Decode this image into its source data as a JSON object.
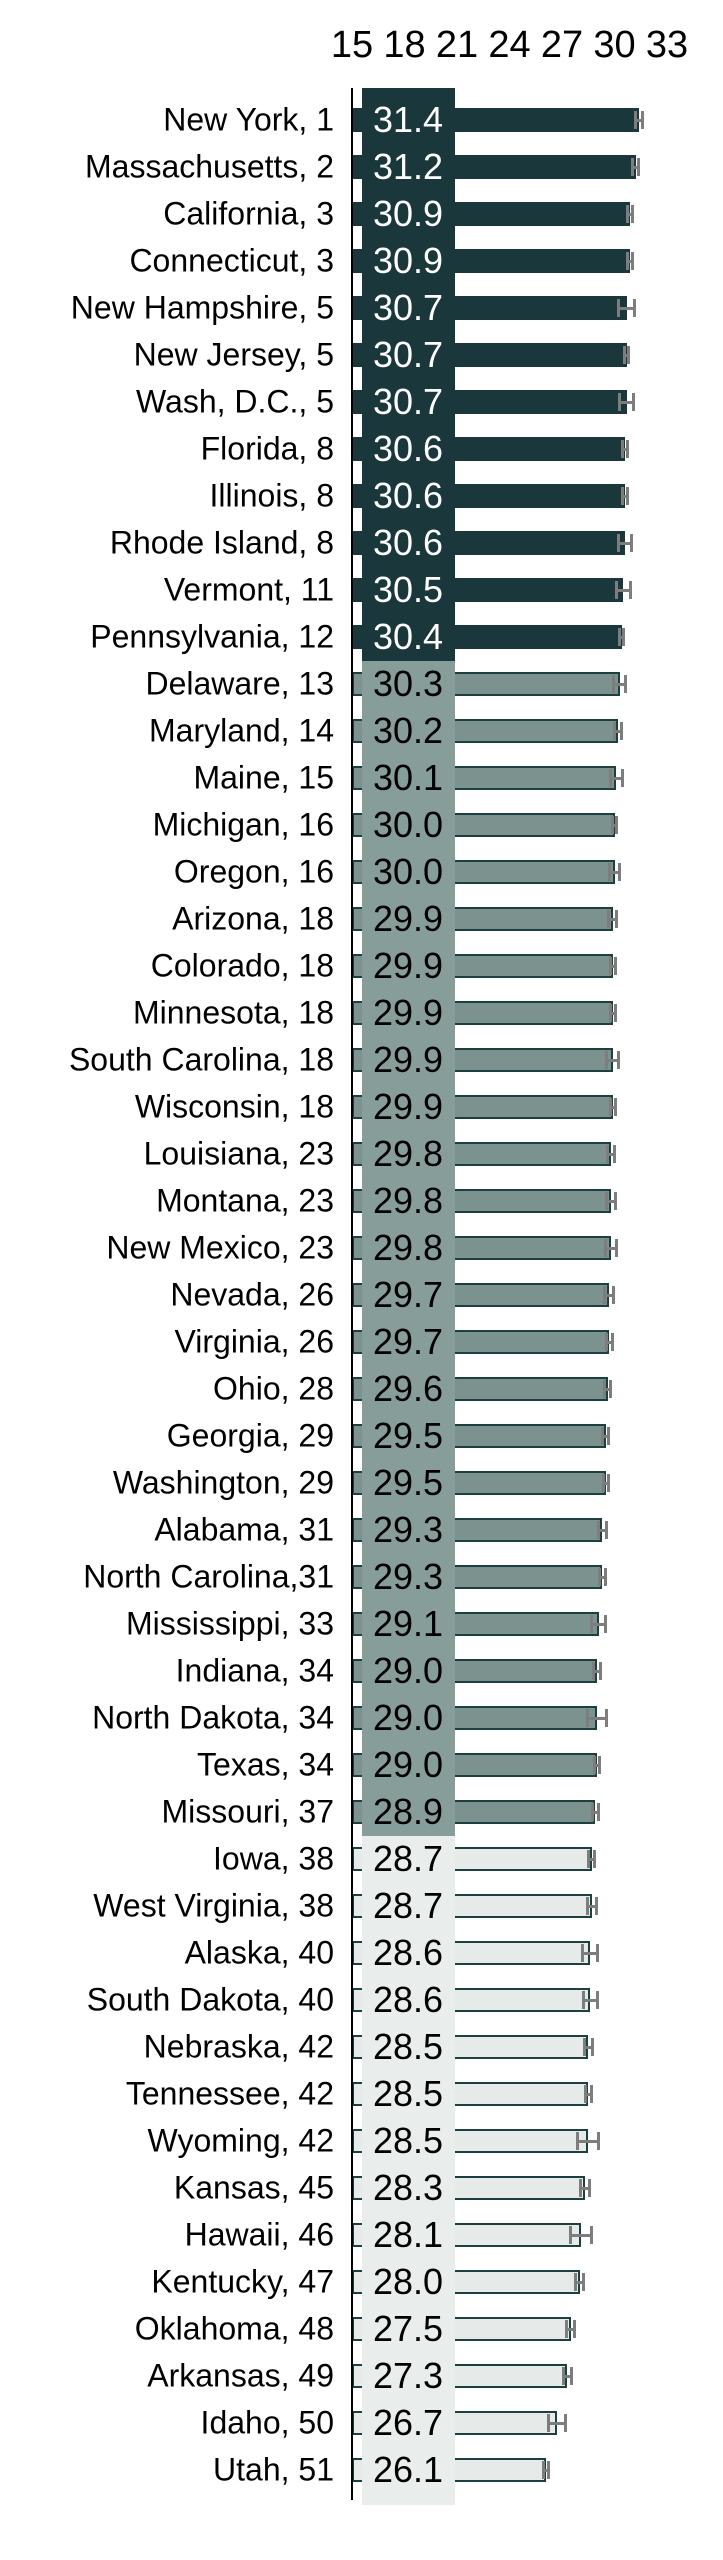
{
  "chart_data": {
    "type": "bar",
    "orientation": "horizontal",
    "title": "",
    "xlabel": "",
    "ylabel": "",
    "x_axis": {
      "min": 15,
      "max": 33,
      "ticks": [
        15,
        18,
        21,
        24,
        27,
        30,
        33
      ],
      "tick_labels": [
        "15",
        "18",
        "21",
        "24",
        "27",
        "30",
        "33"
      ]
    },
    "grid": false,
    "legend": false,
    "value_band": {
      "description": "shaded column behind value labels, colored per tier",
      "tiers": 3
    },
    "colors": {
      "tier1_fill": "#1a373c",
      "tier1_border": "#1a373c",
      "tier1_band": "#1a373c",
      "tier1_value_text": "#ffffff",
      "tier2_fill": "#7b928e",
      "tier2_border": "#1c3f40",
      "tier2_band": "#879d99",
      "tier2_value_text": "#000000",
      "tier3_fill": "#e6ebe9",
      "tier3_border": "#1c3f40",
      "tier3_band": "#e9eeec",
      "tier3_value_text": "#000000",
      "whisker": "#7d7d7d",
      "axis_line": "#000000",
      "label_text": "#000000"
    },
    "rows": [
      {
        "label": "New York, 1",
        "state": "New York",
        "rank": 1,
        "value": 31.4,
        "value_label": "31.4",
        "error": 0.18,
        "tier": 1
      },
      {
        "label": "Massachusetts, 2",
        "state": "Massachusetts",
        "rank": 2,
        "value": 31.2,
        "value_label": "31.2",
        "error": 0.15,
        "tier": 1
      },
      {
        "label": "California, 3",
        "state": "California",
        "rank": 3,
        "value": 30.9,
        "value_label": "30.9",
        "error": 0.15,
        "tier": 1
      },
      {
        "label": "Connecticut, 3",
        "state": "Connecticut",
        "rank": 3,
        "value": 30.9,
        "value_label": "30.9",
        "error": 0.15,
        "tier": 1
      },
      {
        "label": "New Hampshire, 5",
        "state": "New Hampshire",
        "rank": 5,
        "value": 30.7,
        "value_label": "30.7",
        "error": 0.45,
        "tier": 1
      },
      {
        "label": "New Jersey, 5",
        "state": "New Jersey",
        "rank": 5,
        "value": 30.7,
        "value_label": "30.7",
        "error": 0.12,
        "tier": 1
      },
      {
        "label": "Wash, D.C., 5",
        "state": "Wash, D.C.",
        "rank": 5,
        "value": 30.7,
        "value_label": "30.7",
        "error": 0.4,
        "tier": 1
      },
      {
        "label": "Florida, 8",
        "state": "Florida",
        "rank": 8,
        "value": 30.6,
        "value_label": "30.6",
        "error": 0.15,
        "tier": 1
      },
      {
        "label": "Illinois, 8",
        "state": "Illinois",
        "rank": 8,
        "value": 30.6,
        "value_label": "30.6",
        "error": 0.12,
        "tier": 1
      },
      {
        "label": "Rhode Island, 8",
        "state": "Rhode Island",
        "rank": 8,
        "value": 30.6,
        "value_label": "30.6",
        "error": 0.35,
        "tier": 1
      },
      {
        "label": "Vermont, 11",
        "state": "Vermont",
        "rank": 11,
        "value": 30.5,
        "value_label": "30.5",
        "error": 0.4,
        "tier": 1
      },
      {
        "label": "Pennsylvania, 12",
        "state": "Pennsylvania",
        "rank": 12,
        "value": 30.4,
        "value_label": "30.4",
        "error": 0.12,
        "tier": 1
      },
      {
        "label": "Delaware, 13",
        "state": "Delaware",
        "rank": 13,
        "value": 30.3,
        "value_label": "30.3",
        "error": 0.35,
        "tier": 2
      },
      {
        "label": "Maryland, 14",
        "state": "Maryland",
        "rank": 14,
        "value": 30.2,
        "value_label": "30.2",
        "error": 0.22,
        "tier": 2
      },
      {
        "label": "Maine, 15",
        "state": "Maine",
        "rank": 15,
        "value": 30.1,
        "value_label": "30.1",
        "error": 0.35,
        "tier": 2
      },
      {
        "label": "Michigan, 16",
        "state": "Michigan",
        "rank": 16,
        "value": 30.0,
        "value_label": "30.0",
        "error": 0.12,
        "tier": 2
      },
      {
        "label": "Oregon, 16",
        "state": "Oregon",
        "rank": 16,
        "value": 30.0,
        "value_label": "30.0",
        "error": 0.28,
        "tier": 2
      },
      {
        "label": "Arizona, 18",
        "state": "Arizona",
        "rank": 18,
        "value": 29.9,
        "value_label": "29.9",
        "error": 0.22,
        "tier": 2
      },
      {
        "label": "Colorado, 18",
        "state": "Colorado",
        "rank": 18,
        "value": 29.9,
        "value_label": "29.9",
        "error": 0.15,
        "tier": 2
      },
      {
        "label": "Minnesota, 18",
        "state": "Minnesota",
        "rank": 18,
        "value": 29.9,
        "value_label": "29.9",
        "error": 0.15,
        "tier": 2
      },
      {
        "label": "South Carolina, 18",
        "state": "South Carolina",
        "rank": 18,
        "value": 29.9,
        "value_label": "29.9",
        "error": 0.35,
        "tier": 2
      },
      {
        "label": "Wisconsin, 18",
        "state": "Wisconsin",
        "rank": 18,
        "value": 29.9,
        "value_label": "29.9",
        "error": 0.15,
        "tier": 2
      },
      {
        "label": "Louisiana, 23",
        "state": "Louisiana",
        "rank": 23,
        "value": 29.8,
        "value_label": "29.8",
        "error": 0.22,
        "tier": 2
      },
      {
        "label": "Montana, 23",
        "state": "Montana",
        "rank": 23,
        "value": 29.8,
        "value_label": "29.8",
        "error": 0.25,
        "tier": 2
      },
      {
        "label": "New Mexico, 23",
        "state": "New Mexico",
        "rank": 23,
        "value": 29.8,
        "value_label": "29.8",
        "error": 0.3,
        "tier": 2
      },
      {
        "label": "Nevada, 26",
        "state": "Nevada",
        "rank": 26,
        "value": 29.7,
        "value_label": "29.7",
        "error": 0.25,
        "tier": 2
      },
      {
        "label": "Virginia, 26",
        "state": "Virginia",
        "rank": 26,
        "value": 29.7,
        "value_label": "29.7",
        "error": 0.18,
        "tier": 2
      },
      {
        "label": "Ohio, 28",
        "state": "Ohio",
        "rank": 28,
        "value": 29.6,
        "value_label": "29.6",
        "error": 0.18,
        "tier": 2
      },
      {
        "label": "Georgia, 29",
        "state": "Georgia",
        "rank": 29,
        "value": 29.5,
        "value_label": "29.5",
        "error": 0.18,
        "tier": 2
      },
      {
        "label": "Washington, 29",
        "state": "Washington",
        "rank": 29,
        "value": 29.5,
        "value_label": "29.5",
        "error": 0.15,
        "tier": 2
      },
      {
        "label": "Alabama, 31",
        "state": "Alabama",
        "rank": 31,
        "value": 29.3,
        "value_label": "29.3",
        "error": 0.22,
        "tier": 2
      },
      {
        "label": "North Carolina,31",
        "state": "North Carolina",
        "rank": 31,
        "value": 29.3,
        "value_label": "29.3",
        "error": 0.18,
        "tier": 2
      },
      {
        "label": "Mississippi, 33",
        "state": "Mississippi",
        "rank": 33,
        "value": 29.1,
        "value_label": "29.1",
        "error": 0.4,
        "tier": 2
      },
      {
        "label": "Indiana, 34",
        "state": "Indiana",
        "rank": 34,
        "value": 29.0,
        "value_label": "29.0",
        "error": 0.22,
        "tier": 2
      },
      {
        "label": "North Dakota, 34",
        "state": "North Dakota",
        "rank": 34,
        "value": 29.0,
        "value_label": "29.0",
        "error": 0.55,
        "tier": 2
      },
      {
        "label": "Texas, 34",
        "state": "Texas",
        "rank": 34,
        "value": 29.0,
        "value_label": "29.0",
        "error": 0.12,
        "tier": 2
      },
      {
        "label": "Missouri, 37",
        "state": "Missouri",
        "rank": 37,
        "value": 28.9,
        "value_label": "28.9",
        "error": 0.18,
        "tier": 2
      },
      {
        "label": "Iowa, 38",
        "state": "Iowa",
        "rank": 38,
        "value": 28.7,
        "value_label": "28.7",
        "error": 0.18,
        "tier": 3
      },
      {
        "label": "West Virginia, 38",
        "state": "West Virginia",
        "rank": 38,
        "value": 28.7,
        "value_label": "28.7",
        "error": 0.25,
        "tier": 3
      },
      {
        "label": "Alaska, 40",
        "state": "Alaska",
        "rank": 40,
        "value": 28.6,
        "value_label": "28.6",
        "error": 0.45,
        "tier": 3
      },
      {
        "label": "South Dakota, 40",
        "state": "South Dakota",
        "rank": 40,
        "value": 28.6,
        "value_label": "28.6",
        "error": 0.4,
        "tier": 3
      },
      {
        "label": "Nebraska, 42",
        "state": "Nebraska",
        "rank": 42,
        "value": 28.5,
        "value_label": "28.5",
        "error": 0.22,
        "tier": 3
      },
      {
        "label": "Tennessee, 42",
        "state": "Tennessee",
        "rank": 42,
        "value": 28.5,
        "value_label": "28.5",
        "error": 0.18,
        "tier": 3
      },
      {
        "label": "Wyoming, 42",
        "state": "Wyoming",
        "rank": 42,
        "value": 28.5,
        "value_label": "28.5",
        "error": 0.6,
        "tier": 3
      },
      {
        "label": "Kansas, 45",
        "state": "Kansas",
        "rank": 45,
        "value": 28.3,
        "value_label": "28.3",
        "error": 0.25,
        "tier": 3
      },
      {
        "label": "Hawaii, 46",
        "state": "Hawaii",
        "rank": 46,
        "value": 28.1,
        "value_label": "28.1",
        "error": 0.6,
        "tier": 3
      },
      {
        "label": "Kentucky, 47",
        "state": "Kentucky",
        "rank": 47,
        "value": 28.0,
        "value_label": "28.0",
        "error": 0.22,
        "tier": 3
      },
      {
        "label": "Oklahoma, 48",
        "state": "Oklahoma",
        "rank": 48,
        "value": 27.5,
        "value_label": "27.5",
        "error": 0.22,
        "tier": 3
      },
      {
        "label": "Arkansas, 49",
        "state": "Arkansas",
        "rank": 49,
        "value": 27.3,
        "value_label": "27.3",
        "error": 0.22,
        "tier": 3
      },
      {
        "label": "Idaho, 50",
        "state": "Idaho",
        "rank": 50,
        "value": 26.7,
        "value_label": "26.7",
        "error": 0.5,
        "tier": 3
      },
      {
        "label": "Utah, 51",
        "state": "Utah",
        "rank": 51,
        "value": 26.1,
        "value_label": "26.1",
        "error": 0.15,
        "tier": 3
      }
    ]
  }
}
